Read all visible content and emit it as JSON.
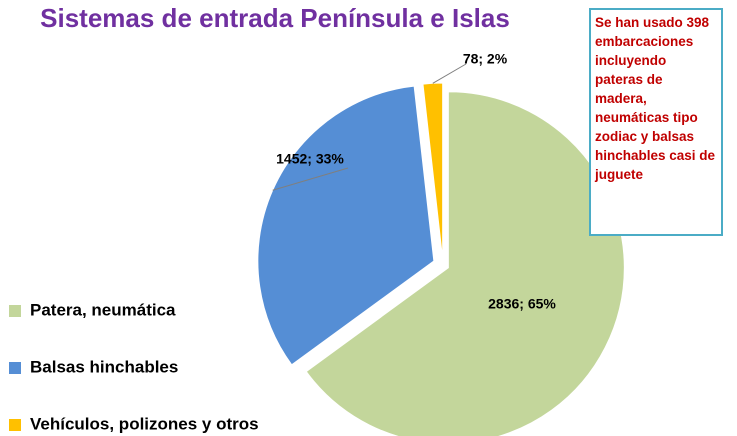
{
  "chart_data": {
    "type": "pie",
    "title": "Sistemas de entrada Península e Islas",
    "categories": [
      "Patera, neumática",
      "Balsas hinchables",
      "Vehículos, polizones y otros"
    ],
    "values": [
      2836,
      1452,
      78
    ],
    "value_labels": [
      "2836; 65%",
      "1452; 33%",
      "78; 2%"
    ],
    "colors": [
      "#c3d69b",
      "#558ed5",
      "#ffc000"
    ],
    "legend": "left",
    "annotation": "Se han usado 398 embarcaciones incluyendo pateras de madera, neumáticas tipo zodiac y balsas hinchables casi de juguete"
  }
}
